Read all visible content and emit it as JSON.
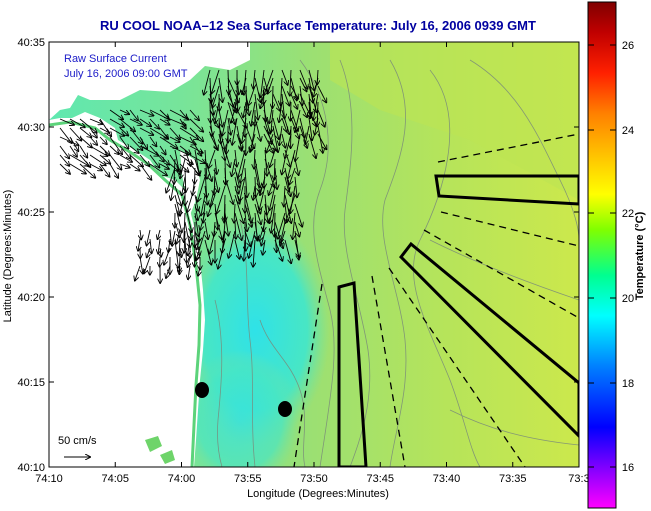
{
  "title": "RU COOL  NOAA–12  Sea Surface Temperature:  July 16, 2006 0939 GMT",
  "annotation": {
    "line1": "Raw Surface Current",
    "line2": "July 16, 2006 09:00 GMT"
  },
  "scale": {
    "label": "50 cm/s"
  },
  "axes": {
    "xlabel": "Longitude (Degrees:Minutes)",
    "ylabel": "Latitude (Degrees:Minutes)",
    "xticks": [
      "74:10",
      "74:05",
      "74:00",
      "73:55",
      "73:50",
      "73:45",
      "73:40",
      "73:35",
      "73:3"
    ],
    "yticks": [
      "40:35",
      "40:30",
      "40:25",
      "40:20",
      "40:15",
      "40:10"
    ]
  },
  "colorbar": {
    "label": "Temperature (°C)",
    "ticks": [
      "26",
      "24",
      "22",
      "20",
      "18",
      "16"
    ],
    "colors": [
      "#ff00ff",
      "#8000ff",
      "#0000ff",
      "#0080ff",
      "#00ffff",
      "#00ff80",
      "#80ff00",
      "#ffff00",
      "#ffc000",
      "#ff8000",
      "#ff0000",
      "#c00000",
      "#800000"
    ]
  },
  "colors": {
    "land": "#ffffff",
    "water_main": "#8ddc6a",
    "water_cold": "#3fe6c8",
    "water_warm": "#c8e850"
  },
  "legend_items": {
    "vectors": "surface current vectors",
    "dots": "black markers",
    "sectors": "solid and dashed sector lines"
  }
}
